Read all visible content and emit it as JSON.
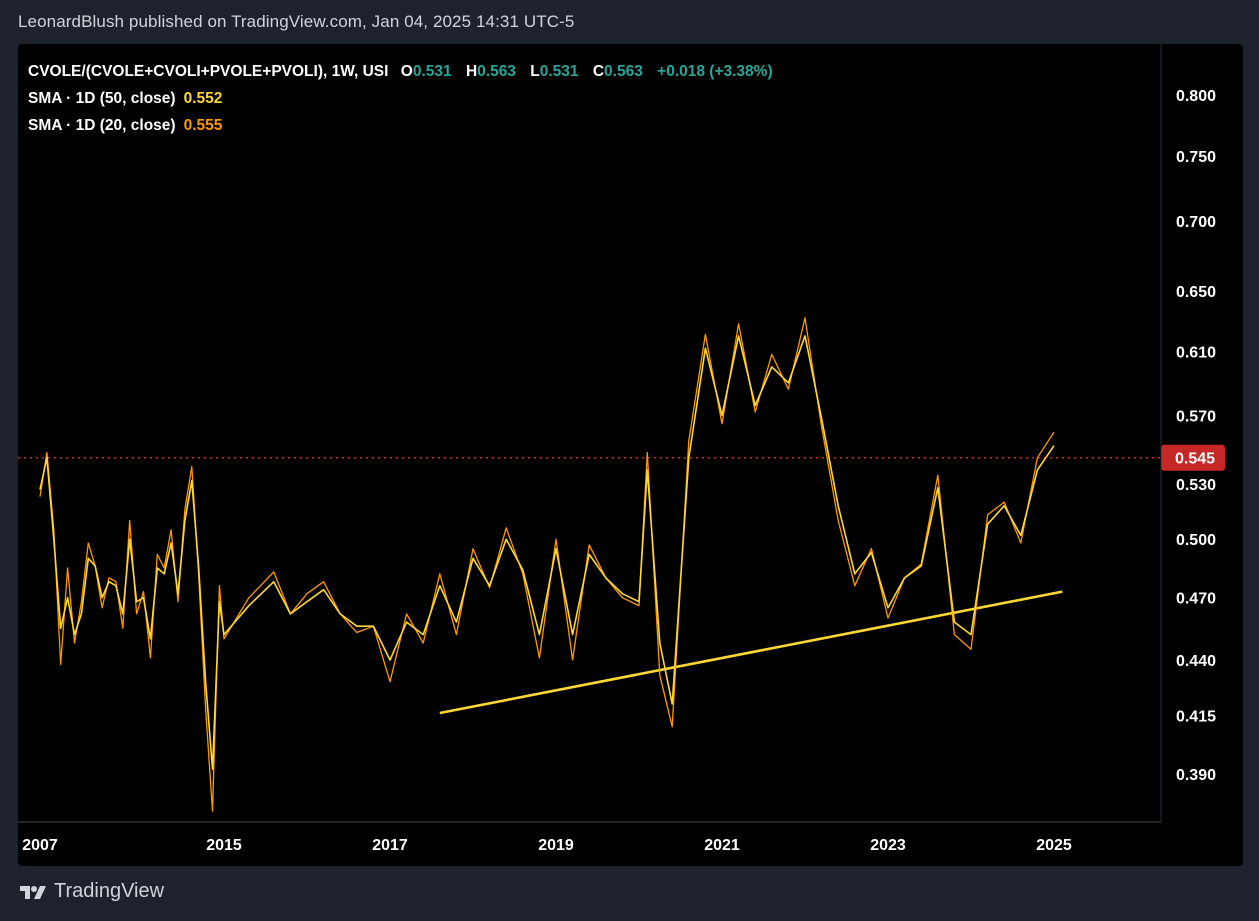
{
  "header": {
    "publisher": "LeonardBlush published on TradingView.com, Jan 04, 2025 14:31 UTC-5"
  },
  "legend": {
    "symbol": "CVOLE/(CVOLE+CVOLI+PVOLE+PVOLI), 1W, USI",
    "o_label": "O",
    "o": "0.531",
    "h_label": "H",
    "h": "0.563",
    "l_label": "L",
    "l": "0.531",
    "c_label": "C",
    "c": "0.563",
    "change": "+0.018 (+3.38%)",
    "sma50_label": "SMA · 1D (50, close)",
    "sma50_value": "0.552",
    "sma20_label": "SMA · 1D (20, close)",
    "sma20_value": "0.555"
  },
  "price_tag": {
    "value": "0.545",
    "color": "#c62828"
  },
  "footer": {
    "brand": "TradingView",
    "logo_icon": "tradingview-logo-icon"
  },
  "chart_data": {
    "type": "line",
    "x": [
      2007.0,
      2007.3,
      2007.6,
      2007.9,
      2008.2,
      2008.5,
      2008.8,
      2009.1,
      2009.4,
      2009.7,
      2010.0,
      2010.3,
      2010.6,
      2010.9,
      2011.2,
      2011.5,
      2011.8,
      2012.1,
      2012.4,
      2012.7,
      2013.0,
      2013.3,
      2013.6,
      2013.9,
      2014.2,
      2014.5,
      2014.8,
      2015.0,
      2015.3,
      2015.6,
      2015.8,
      2016.0,
      2016.2,
      2016.4,
      2016.6,
      2016.8,
      2017.0,
      2017.2,
      2017.4,
      2017.6,
      2017.8,
      2018.0,
      2018.2,
      2018.4,
      2018.6,
      2018.8,
      2019.0,
      2019.2,
      2019.4,
      2019.6,
      2019.8,
      2020.0,
      2020.1,
      2020.25,
      2020.4,
      2020.6,
      2020.8,
      2021.0,
      2021.2,
      2021.4,
      2021.6,
      2021.8,
      2022.0,
      2022.2,
      2022.4,
      2022.6,
      2022.8,
      2023.0,
      2023.2,
      2023.4,
      2023.6,
      2023.8,
      2024.0,
      2024.2,
      2024.4,
      2024.6,
      2024.8,
      2025.0
    ],
    "series": [
      {
        "color": "#ff9800",
        "values": [
          0.523,
          0.548,
          0.505,
          0.438,
          0.485,
          0.448,
          0.468,
          0.498,
          0.486,
          0.465,
          0.48,
          0.478,
          0.455,
          0.51,
          0.462,
          0.473,
          0.441,
          0.492,
          0.485,
          0.505,
          0.468,
          0.516,
          0.54,
          0.481,
          0.418,
          0.375,
          0.476,
          0.45,
          0.47,
          0.483,
          0.462,
          0.472,
          0.478,
          0.462,
          0.453,
          0.456,
          0.43,
          0.462,
          0.448,
          0.482,
          0.452,
          0.495,
          0.475,
          0.506,
          0.482,
          0.441,
          0.5,
          0.44,
          0.497,
          0.48,
          0.47,
          0.466,
          0.548,
          0.433,
          0.41,
          0.555,
          0.621,
          0.565,
          0.628,
          0.572,
          0.608,
          0.586,
          0.632,
          0.563,
          0.51,
          0.476,
          0.495,
          0.46,
          0.48,
          0.487,
          0.535,
          0.452,
          0.445,
          0.513,
          0.52,
          0.498,
          0.545,
          0.56
        ]
      },
      {
        "color": "#fdd835",
        "values": [
          0.527,
          0.545,
          0.5,
          0.455,
          0.47,
          0.452,
          0.462,
          0.49,
          0.486,
          0.47,
          0.478,
          0.476,
          0.462,
          0.5,
          0.468,
          0.47,
          0.45,
          0.485,
          0.482,
          0.498,
          0.472,
          0.51,
          0.532,
          0.485,
          0.43,
          0.392,
          0.468,
          0.452,
          0.466,
          0.478,
          0.462,
          0.468,
          0.474,
          0.462,
          0.456,
          0.456,
          0.44,
          0.458,
          0.452,
          0.476,
          0.458,
          0.49,
          0.476,
          0.5,
          0.484,
          0.452,
          0.495,
          0.452,
          0.492,
          0.48,
          0.472,
          0.468,
          0.538,
          0.448,
          0.42,
          0.545,
          0.612,
          0.57,
          0.62,
          0.576,
          0.6,
          0.59,
          0.62,
          0.568,
          0.518,
          0.482,
          0.493,
          0.465,
          0.48,
          0.486,
          0.528,
          0.458,
          0.452,
          0.508,
          0.518,
          0.502,
          0.538,
          0.552
        ]
      }
    ],
    "trendline": {
      "x": [
        2017.6,
        2025.1
      ],
      "y": [
        0.416,
        0.473
      ],
      "color": "#fdd835"
    },
    "hline": {
      "y": 0.545,
      "style": "dotted",
      "color": "#c62828"
    },
    "y_axis": {
      "ticks": [
        "0.800",
        "0.750",
        "0.700",
        "0.650",
        "0.610",
        "0.570",
        "0.530",
        "0.500",
        "0.470",
        "0.440",
        "0.415",
        "0.390"
      ],
      "scale": "log"
    },
    "x_axis": {
      "ticks": [
        "2007",
        "2015",
        "2017",
        "2019",
        "2021",
        "2023",
        "2025"
      ]
    }
  }
}
